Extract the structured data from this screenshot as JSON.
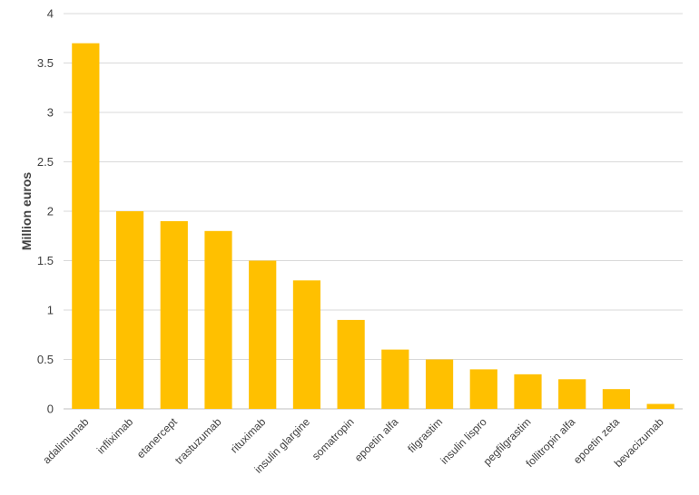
{
  "chart_data": {
    "type": "bar",
    "title": "",
    "xlabel": "",
    "ylabel": "Million euros",
    "ylim": [
      0,
      4
    ],
    "yticks": [
      0,
      0.5,
      1,
      1.5,
      2,
      2.5,
      3,
      3.5,
      4
    ],
    "grid": true,
    "legend": "none",
    "bar_color": "#FFC000",
    "categories": [
      "adalimumab",
      "infliximab",
      "etanercept",
      "trastuzumab",
      "rituximab",
      "insulin glargine",
      "somatropin",
      "epoetin alfa",
      "filgrastim",
      "insulin lispro",
      "pegfilgrastim",
      "follitropin alfa",
      "epoetin zeta",
      "bevacizumab"
    ],
    "values": [
      3.7,
      2.0,
      1.9,
      1.8,
      1.5,
      1.3,
      0.9,
      0.6,
      0.5,
      0.4,
      0.35,
      0.3,
      0.2,
      0.05
    ]
  }
}
